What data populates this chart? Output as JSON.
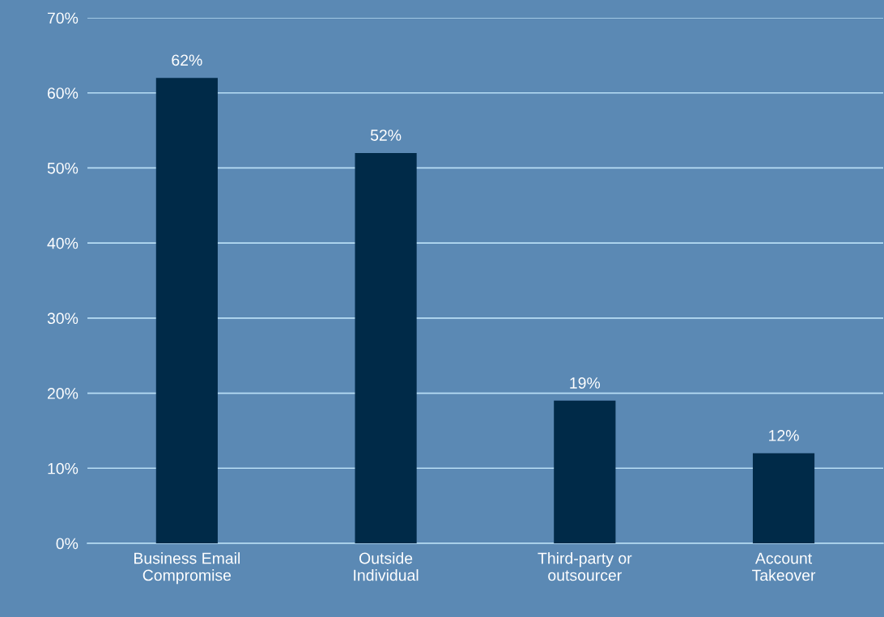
{
  "chart_data": {
    "type": "bar",
    "categories": [
      "Business Email\nCompromise",
      "Outside\nIndividual",
      "Third-party or\noutsourcer",
      "Account\nTakeover"
    ],
    "values": [
      62,
      52,
      19,
      12
    ],
    "value_labels": [
      "62%",
      "52%",
      "19%",
      "12%"
    ],
    "color": "#002a48",
    "ylim": [
      0,
      70
    ],
    "yticks": [
      {
        "value": 0,
        "label": "0%"
      },
      {
        "value": 10,
        "label": "10%"
      },
      {
        "value": 20,
        "label": "20%"
      },
      {
        "value": 30,
        "label": "30%"
      },
      {
        "value": 40,
        "label": "40%"
      },
      {
        "value": 50,
        "label": "50%"
      },
      {
        "value": 60,
        "label": "60%"
      },
      {
        "value": 70,
        "label": "70%"
      }
    ],
    "grid": "y",
    "legend": false
  }
}
